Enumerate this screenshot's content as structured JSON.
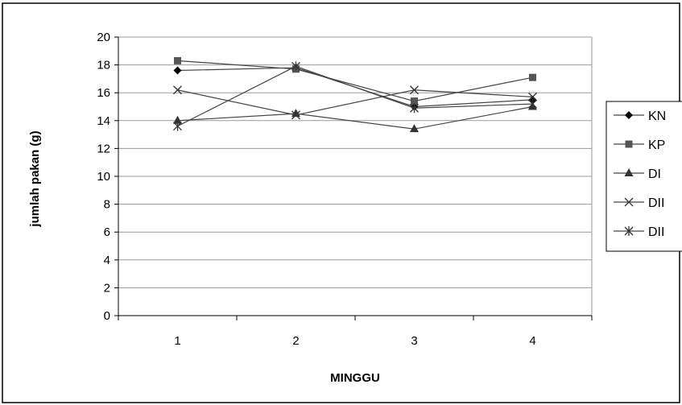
{
  "chart_data": {
    "type": "line",
    "title": "",
    "xlabel": "MINGGU",
    "ylabel": "jumlah pakan (g)",
    "categories": [
      "1",
      "2",
      "3",
      "4"
    ],
    "ylim": [
      0,
      20
    ],
    "yticks": [
      "0",
      "2",
      "4",
      "6",
      "8",
      "10",
      "12",
      "14",
      "16",
      "18",
      "20"
    ],
    "grid": true,
    "legend_position": "right",
    "series": [
      {
        "name": "KN",
        "marker": "diamond",
        "values": [
          17.6,
          17.8,
          15.0,
          15.5
        ]
      },
      {
        "name": "KP",
        "marker": "square",
        "values": [
          18.3,
          17.7,
          15.4,
          17.1
        ]
      },
      {
        "name": "DI",
        "marker": "triangle",
        "values": [
          14.0,
          14.5,
          13.4,
          15.0
        ]
      },
      {
        "name": "DII",
        "marker": "x",
        "values": [
          16.2,
          14.4,
          16.2,
          15.7
        ]
      },
      {
        "name": "DII",
        "marker": "star",
        "values": [
          13.6,
          17.9,
          14.9,
          15.2
        ]
      }
    ]
  }
}
